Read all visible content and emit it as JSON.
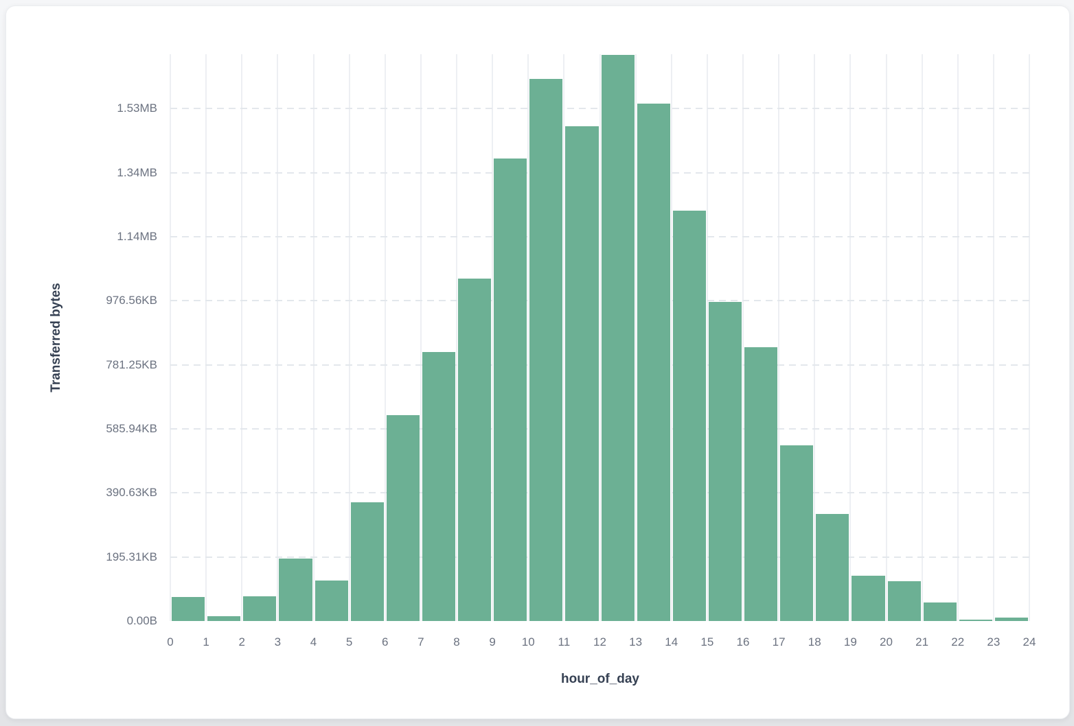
{
  "card": {
    "background": "#ffffff"
  },
  "chart_data": {
    "type": "bar",
    "title": "",
    "xlabel": "hour_of_day",
    "ylabel": "Transferred bytes",
    "categories": [
      0,
      1,
      2,
      3,
      4,
      5,
      6,
      7,
      8,
      9,
      10,
      11,
      12,
      13,
      14,
      15,
      16,
      17,
      18,
      19,
      20,
      21,
      22,
      23
    ],
    "values_bytes": [
      74000,
      16000,
      78000,
      196000,
      126000,
      370000,
      642000,
      839000,
      1069000,
      1444000,
      1692000,
      1544000,
      1767000,
      1616000,
      1281000,
      996000,
      856000,
      548000,
      334000,
      141000,
      125000,
      58000,
      3500,
      11500
    ],
    "x_tick_labels": [
      "0",
      "1",
      "2",
      "3",
      "4",
      "5",
      "6",
      "7",
      "8",
      "9",
      "10",
      "11",
      "12",
      "13",
      "14",
      "15",
      "16",
      "17",
      "18",
      "19",
      "20",
      "21",
      "22",
      "23",
      "24"
    ],
    "y_tick_labels": [
      "0.00B",
      "195.31KB",
      "390.63KB",
      "585.94KB",
      "781.25KB",
      "976.56KB",
      "1.14MB",
      "1.34MB",
      "1.53MB"
    ],
    "y_tick_bytes": [
      0,
      200000,
      400000,
      600000,
      800000,
      1000000,
      1200000,
      1400000,
      1600000
    ],
    "ylim_bytes": [
      0,
      1770000
    ],
    "grid": {
      "vertical_style": "solid",
      "horizontal_style": "dashed",
      "legend": "none"
    },
    "colors": {
      "bar": "#6cb094",
      "vertical_gridline": "#edeff3",
      "horizontal_gridline": "#e3e7ec",
      "tick_text": "#6b7280",
      "axis_title_text": "#364153"
    }
  }
}
